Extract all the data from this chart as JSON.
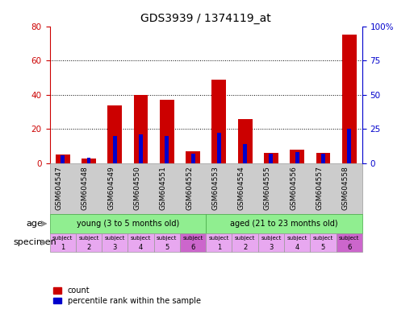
{
  "title": "GDS3939 / 1374119_at",
  "samples": [
    "GSM604547",
    "GSM604548",
    "GSM604549",
    "GSM604550",
    "GSM604551",
    "GSM604552",
    "GSM604553",
    "GSM604554",
    "GSM604555",
    "GSM604556",
    "GSM604557",
    "GSM604558"
  ],
  "count_values": [
    5,
    3,
    34,
    40,
    37,
    7,
    49,
    26,
    6,
    8,
    6,
    75
  ],
  "percentile_values": [
    6,
    4,
    20,
    21,
    20,
    7,
    22,
    14,
    7,
    8,
    7,
    25
  ],
  "ylim_left": [
    0,
    80
  ],
  "ylim_right": [
    0,
    100
  ],
  "yticks_left": [
    0,
    20,
    40,
    60,
    80
  ],
  "ytick_labels_left": [
    "0",
    "20",
    "40",
    "60",
    "80"
  ],
  "yticks_right": [
    0,
    25,
    50,
    75,
    100
  ],
  "ytick_labels_right": [
    "0",
    "25",
    "50",
    "75",
    "100%"
  ],
  "count_color": "#cc0000",
  "percentile_color": "#0000cc",
  "age_group_color": "#90ee90",
  "age_group_border": "#44aa44",
  "specimen_color_light": "#e8a8f0",
  "specimen_color_dark": "#cc66cc",
  "xticklabel_bg": "#cccccc",
  "bg_color": "#ffffff",
  "age_label": "age",
  "specimen_label": "specimen",
  "legend_count": "count",
  "legend_percentile": "percentile rank within the sample"
}
